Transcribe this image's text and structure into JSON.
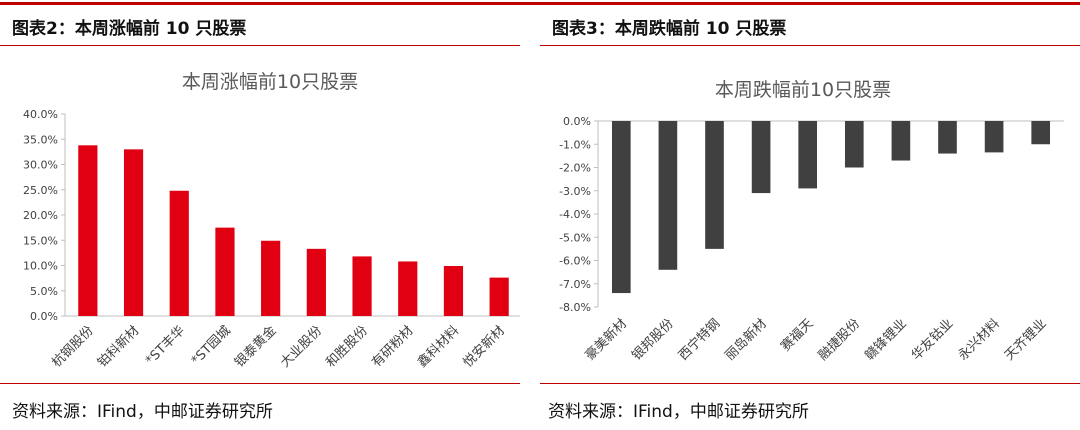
{
  "colors": {
    "accent": "#c00000",
    "left_bar": "#e00012",
    "right_bar": "#404040"
  },
  "left": {
    "figure_title": "图表2：本周涨幅前 10 只股票",
    "source": "资料来源：IFind，中邮证券研究所"
  },
  "right": {
    "figure_title": "图表3：本周跌幅前 10 只股票",
    "source": "资料来源：IFind，中邮证券研究所"
  },
  "chart_data": [
    {
      "type": "bar",
      "title": "本周涨幅前10只股票",
      "categories": [
        "杭钢股份",
        "铂科新材",
        "*ST丰华",
        "*ST园城",
        "银泰黄金",
        "大业股份",
        "和胜股份",
        "有研粉材",
        "鑫科材料",
        "悦安新材"
      ],
      "values": [
        33.8,
        33.0,
        24.8,
        17.5,
        14.9,
        13.3,
        11.8,
        10.8,
        9.9,
        7.6
      ],
      "ylim": [
        0,
        40
      ],
      "yticks": [
        "0.0%",
        "5.0%",
        "10.0%",
        "15.0%",
        "20.0%",
        "25.0%",
        "30.0%",
        "35.0%",
        "40.0%"
      ],
      "grid": false,
      "legend": "none"
    },
    {
      "type": "bar",
      "title": "本周跌幅前10只股票",
      "categories": [
        "豪美新材",
        "银邦股份",
        "西宁特钢",
        "丽岛新材",
        "赛福天",
        "融捷股份",
        "赣锋锂业",
        "华友钴业",
        "永兴材料",
        "天齐锂业"
      ],
      "values": [
        -7.4,
        -6.4,
        -5.5,
        -3.1,
        -2.9,
        -2.0,
        -1.7,
        -1.4,
        -1.35,
        -1.0
      ],
      "ylim": [
        -8,
        0
      ],
      "yticks": [
        "0.0%",
        "-1.0%",
        "-2.0%",
        "-3.0%",
        "-4.0%",
        "-5.0%",
        "-6.0%",
        "-7.0%",
        "-8.0%"
      ],
      "grid": false,
      "legend": "none"
    }
  ]
}
